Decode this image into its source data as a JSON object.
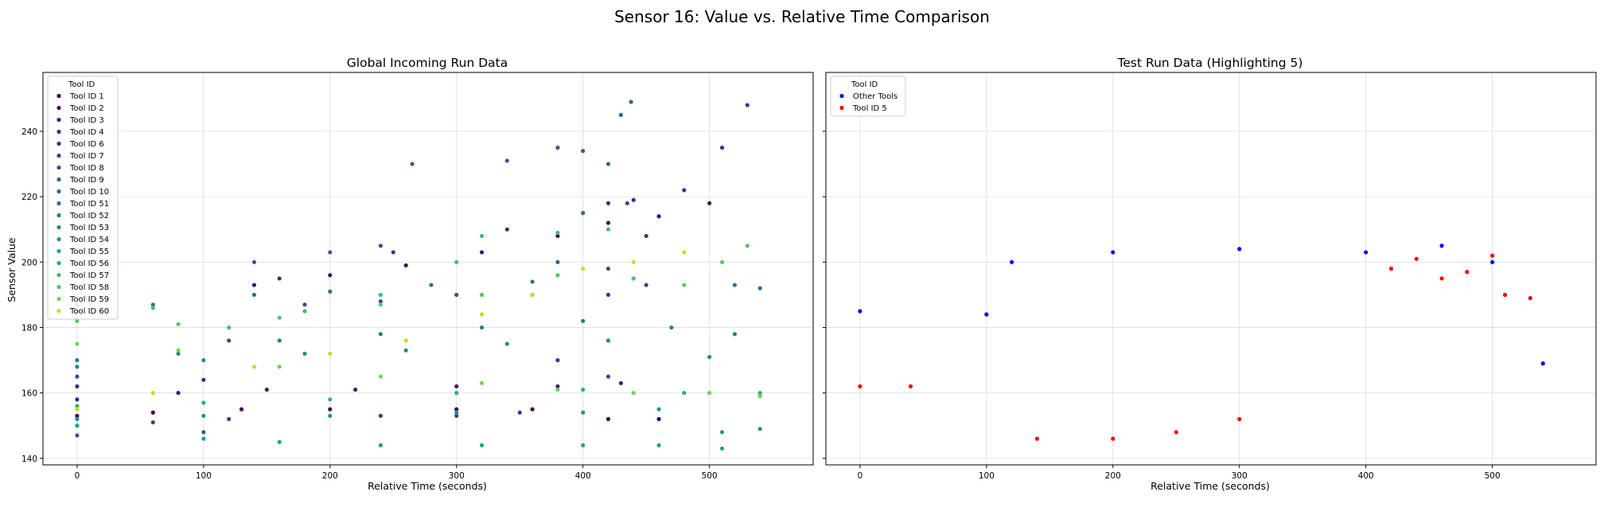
{
  "figure": {
    "title": "Sensor 16: Value vs. Relative Time Comparison"
  },
  "chart_data": [
    {
      "type": "scatter",
      "title": "Global Incoming Run Data",
      "xlabel": "Relative Time (seconds)",
      "ylabel": "Sensor Value",
      "xlim": [
        -27,
        582
      ],
      "ylim": [
        138,
        258
      ],
      "xticks": [
        0,
        100,
        200,
        300,
        400,
        500
      ],
      "yticks": [
        140,
        160,
        180,
        200,
        220,
        240
      ],
      "grid": true,
      "legend": {
        "title": "Tool ID",
        "position": "upper-left"
      },
      "series": [
        {
          "name": "Tool ID 1",
          "color": "#440154",
          "points": [
            [
              0,
              153
            ],
            [
              60,
              154
            ],
            [
              130,
              155
            ],
            [
              200,
              155
            ],
            [
              300,
              155
            ],
            [
              360,
              155
            ],
            [
              420,
              152
            ],
            [
              460,
              152
            ]
          ]
        },
        {
          "name": "Tool ID 2",
          "color": "#470e61",
          "points": [
            [
              140,
              193
            ],
            [
              200,
              196
            ],
            [
              260,
              199
            ],
            [
              320,
              203
            ],
            [
              380,
              208
            ],
            [
              420,
              212
            ],
            [
              460,
              214
            ],
            [
              500,
              218
            ]
          ]
        },
        {
          "name": "Tool ID 3",
          "color": "#481b6d",
          "points": [
            [
              0,
              158
            ],
            [
              80,
              160
            ],
            [
              150,
              161
            ],
            [
              220,
              161
            ],
            [
              300,
              162
            ],
            [
              380,
              162
            ],
            [
              430,
              163
            ]
          ]
        },
        {
          "name": "Tool ID 4",
          "color": "#482979",
          "points": [
            [
              0,
              162
            ],
            [
              100,
              164
            ],
            [
              160,
              195
            ],
            [
              250,
              203
            ],
            [
              340,
              210
            ],
            [
              420,
              218
            ],
            [
              440,
              219
            ]
          ]
        },
        {
          "name": "Tool ID 6",
          "color": "#46337f",
          "points": [
            [
              380,
              170
            ],
            [
              420,
              190
            ],
            [
              450,
              208
            ],
            [
              480,
              222
            ],
            [
              510,
              235
            ],
            [
              530,
              248
            ]
          ]
        },
        {
          "name": "Tool ID 7",
          "color": "#433e85",
          "points": [
            [
              0,
              150
            ],
            [
              60,
              151
            ],
            [
              120,
              152
            ],
            [
              240,
              153
            ],
            [
              300,
              153
            ],
            [
              350,
              154
            ],
            [
              420,
              165
            ],
            [
              450,
              193
            ]
          ]
        },
        {
          "name": "Tool ID 8",
          "color": "#3e4989",
          "points": [
            [
              0,
              165
            ],
            [
              120,
              176
            ],
            [
              180,
              187
            ],
            [
              240,
              188
            ],
            [
              300,
              190
            ],
            [
              360,
              190
            ],
            [
              420,
              198
            ],
            [
              435,
              218
            ]
          ]
        },
        {
          "name": "Tool ID 9",
          "color": "#38588c",
          "points": [
            [
              0,
              147
            ],
            [
              100,
              148
            ],
            [
              140,
              200
            ],
            [
              200,
              203
            ],
            [
              240,
              205
            ],
            [
              265,
              230
            ],
            [
              340,
              231
            ],
            [
              380,
              235
            ],
            [
              400,
              234
            ]
          ]
        },
        {
          "name": "Tool ID 10",
          "color": "#33638d",
          "points": [
            [
              380,
              200
            ],
            [
              400,
              215
            ],
            [
              420,
              230
            ],
            [
              430,
              245
            ],
            [
              438,
              249
            ]
          ]
        },
        {
          "name": "Tool ID 51",
          "color": "#2d708e",
          "points": [
            [
              0,
              185
            ],
            [
              60,
              187
            ],
            [
              140,
              190
            ],
            [
              200,
              191
            ],
            [
              280,
              193
            ],
            [
              360,
              194
            ],
            [
              440,
              195
            ],
            [
              520,
              193
            ],
            [
              540,
              192
            ]
          ]
        },
        {
          "name": "Tool ID 52",
          "color": "#287d8e",
          "points": [
            [
              0,
              170
            ],
            [
              80,
              172
            ],
            [
              160,
              176
            ],
            [
              240,
              178
            ],
            [
              320,
              180
            ],
            [
              400,
              182
            ],
            [
              470,
              180
            ],
            [
              520,
              178
            ]
          ]
        },
        {
          "name": "Tool ID 53",
          "color": "#23898e",
          "points": [
            [
              0,
              168
            ],
            [
              100,
              170
            ],
            [
              180,
              172
            ],
            [
              260,
              173
            ],
            [
              340,
              175
            ],
            [
              420,
              176
            ],
            [
              500,
              171
            ]
          ]
        },
        {
          "name": "Tool ID 54",
          "color": "#1f968b",
          "points": [
            [
              0,
              152
            ],
            [
              100,
              153
            ],
            [
              200,
              153
            ],
            [
              300,
              154
            ],
            [
              400,
              154
            ],
            [
              460,
              155
            ],
            [
              510,
              148
            ],
            [
              540,
              149
            ]
          ]
        },
        {
          "name": "Tool ID 55",
          "color": "#20a386",
          "points": [
            [
              0,
              150
            ],
            [
              100,
              146
            ],
            [
              160,
              145
            ],
            [
              240,
              144
            ],
            [
              320,
              144
            ],
            [
              400,
              144
            ],
            [
              460,
              144
            ],
            [
              510,
              143
            ]
          ]
        },
        {
          "name": "Tool ID 56",
          "color": "#29af7f",
          "points": [
            [
              0,
              156
            ],
            [
              100,
              157
            ],
            [
              200,
              158
            ],
            [
              300,
              160
            ],
            [
              400,
              161
            ],
            [
              480,
              160
            ],
            [
              540,
              160
            ]
          ]
        },
        {
          "name": "Tool ID 57",
          "color": "#3dbc74",
          "points": [
            [
              0,
              187
            ],
            [
              60,
              186
            ],
            [
              120,
              180
            ],
            [
              180,
              185
            ],
            [
              240,
              190
            ],
            [
              300,
              200
            ],
            [
              320,
              208
            ],
            [
              380,
              209
            ],
            [
              420,
              210
            ]
          ]
        },
        {
          "name": "Tool ID 58",
          "color": "#56c667",
          "points": [
            [
              0,
              182
            ],
            [
              80,
              181
            ],
            [
              160,
              183
            ],
            [
              240,
              187
            ],
            [
              320,
              190
            ],
            [
              380,
              196
            ],
            [
              440,
              195
            ],
            [
              480,
              193
            ],
            [
              510,
              200
            ],
            [
              530,
              205
            ]
          ]
        },
        {
          "name": "Tool ID 59",
          "color": "#75d054",
          "points": [
            [
              0,
              175
            ],
            [
              80,
              173
            ],
            [
              160,
              168
            ],
            [
              240,
              165
            ],
            [
              320,
              163
            ],
            [
              380,
              161
            ],
            [
              440,
              160
            ],
            [
              500,
              160
            ],
            [
              540,
              159
            ]
          ]
        },
        {
          "name": "Tool ID 60",
          "color": "#bddf26",
          "points": [
            [
              0,
              155
            ],
            [
              60,
              160
            ],
            [
              140,
              168
            ],
            [
              200,
              172
            ],
            [
              260,
              176
            ],
            [
              320,
              184
            ],
            [
              360,
              190
            ],
            [
              400,
              198
            ],
            [
              440,
              200
            ],
            [
              480,
              203
            ]
          ]
        }
      ]
    },
    {
      "type": "scatter",
      "title": "Test Run Data (Highlighting 5)",
      "xlabel": "Relative Time (seconds)",
      "ylabel": "",
      "xlim": [
        -27,
        582
      ],
      "ylim": [
        138,
        258
      ],
      "xticks": [
        0,
        100,
        200,
        300,
        400,
        500
      ],
      "yticks": [
        140,
        160,
        180,
        200,
        220,
        240
      ],
      "grid": true,
      "legend": {
        "title": "Tool ID",
        "position": "upper-left"
      },
      "series": [
        {
          "name": "Other Tools",
          "color": "#0000ff",
          "points": [
            [
              0,
              185
            ],
            [
              100,
              184
            ],
            [
              120,
              200
            ],
            [
              200,
              203
            ],
            [
              300,
              204
            ],
            [
              400,
              203
            ],
            [
              460,
              205
            ],
            [
              500,
              200
            ],
            [
              540,
              169
            ]
          ]
        },
        {
          "name": "Tool ID 5",
          "color": "#ff0000",
          "points": [
            [
              0,
              162
            ],
            [
              40,
              162
            ],
            [
              140,
              146
            ],
            [
              200,
              146
            ],
            [
              250,
              148
            ],
            [
              300,
              152
            ],
            [
              420,
              198
            ],
            [
              440,
              201
            ],
            [
              460,
              195
            ],
            [
              480,
              197
            ],
            [
              500,
              202
            ],
            [
              510,
              190
            ],
            [
              530,
              189
            ]
          ]
        }
      ]
    }
  ]
}
